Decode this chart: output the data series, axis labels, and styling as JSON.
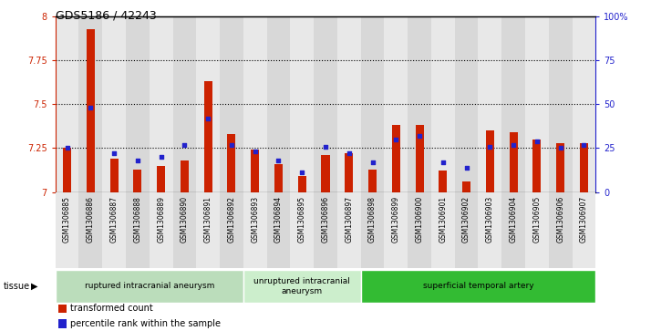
{
  "title": "GDS5186 / 42243",
  "samples": [
    "GSM1306885",
    "GSM1306886",
    "GSM1306887",
    "GSM1306888",
    "GSM1306889",
    "GSM1306890",
    "GSM1306891",
    "GSM1306892",
    "GSM1306893",
    "GSM1306894",
    "GSM1306895",
    "GSM1306896",
    "GSM1306897",
    "GSM1306898",
    "GSM1306899",
    "GSM1306900",
    "GSM1306901",
    "GSM1306902",
    "GSM1306903",
    "GSM1306904",
    "GSM1306905",
    "GSM1306906",
    "GSM1306907"
  ],
  "transformed_count": [
    7.25,
    7.93,
    7.19,
    7.13,
    7.15,
    7.18,
    7.63,
    7.33,
    7.24,
    7.16,
    7.09,
    7.21,
    7.22,
    7.13,
    7.38,
    7.38,
    7.12,
    7.06,
    7.35,
    7.34,
    7.3,
    7.28,
    7.28
  ],
  "percentile_rank": [
    25,
    48,
    22,
    18,
    20,
    27,
    42,
    27,
    23,
    18,
    11,
    26,
    22,
    17,
    30,
    32,
    17,
    14,
    26,
    27,
    29,
    25,
    27
  ],
  "ymin": 7.0,
  "ymax": 8.0,
  "yticks": [
    7.0,
    7.25,
    7.5,
    7.75,
    8.0
  ],
  "ytick_labels": [
    "7",
    "7.25",
    "7.5",
    "7.75",
    "8"
  ],
  "right_yticks": [
    0,
    25,
    50,
    75,
    100
  ],
  "right_ytick_labels": [
    "0",
    "25",
    "50",
    "75",
    "100%"
  ],
  "bar_color": "#cc2200",
  "dot_color": "#2222cc",
  "plot_bg": "#ffffff",
  "col_bg_even": "#d8d8d8",
  "col_bg_odd": "#e8e8e8",
  "left_axis_color": "#cc2200",
  "right_axis_color": "#2222cc",
  "groups": [
    {
      "label": "ruptured intracranial aneurysm",
      "start": 0,
      "end": 8,
      "color": "#bbddbb"
    },
    {
      "label": "unruptured intracranial\naneurysm",
      "start": 8,
      "end": 13,
      "color": "#cceecc"
    },
    {
      "label": "superficial temporal artery",
      "start": 13,
      "end": 23,
      "color": "#33bb33"
    }
  ],
  "legend_items": [
    {
      "label": "transformed count",
      "color": "#cc2200"
    },
    {
      "label": "percentile rank within the sample",
      "color": "#2222cc"
    }
  ]
}
